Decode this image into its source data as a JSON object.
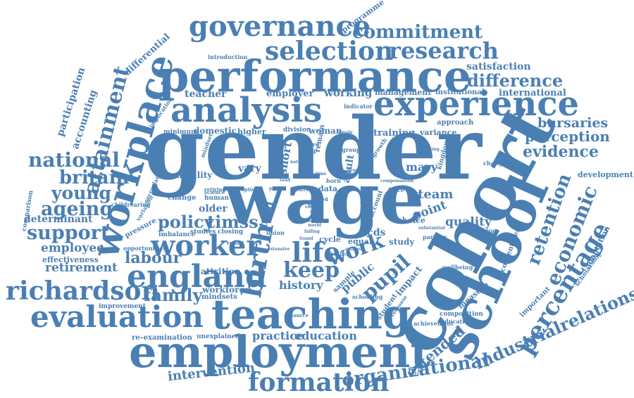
{
  "word_color": "#4a7fb3",
  "background_color": "#ffffff",
  "words": {
    "gender": "gender",
    "cohort": "cohort",
    "wage": "wage",
    "school": "school",
    "performance": "performance",
    "employment": "employment",
    "teaching": "teaching",
    "analysis": "analysis",
    "experience": "experience",
    "workplace": "workplace",
    "england": "england",
    "evaluation": "evaluation",
    "governance": "governance",
    "selection": "selection",
    "research": "research",
    "commitment": "commitment",
    "richardson": "richardson",
    "formation": "formation",
    "worker": "worker",
    "percentage": "percentage",
    "birth": "birth",
    "attainment": "attainment",
    "national": "national",
    "britain": "britain",
    "young": "young",
    "ageing": "ageing",
    "support": "support",
    "policy": "policy",
    "timss": "timss",
    "life": "life",
    "keep": "keep",
    "work": "work",
    "pupil": "pupil",
    "labour": "labour",
    "family": "family",
    "difference": "difference",
    "economic": "economic",
    "retention": "retention",
    "evidence": "evidence",
    "perception": "perception",
    "bursaries": "bursaries",
    "organizational": "organizational",
    "industrialrelations": "industrialrelations",
    "extended": "extended",
    "intervention": "intervention",
    "education": "education",
    "practice": "practice",
    "history": "history",
    "public": "public",
    "team": "team",
    "quality": "quality",
    "mary": "mary",
    "retirement": "retirement",
    "employee": "employee",
    "effectiveness": "effectiveness",
    "determinant": "determinant",
    "participation": "participation",
    "accounting": "accounting",
    "differential": "differential",
    "programme": "programme",
    "satisfaction": "satisfaction",
    "international": "international",
    "management": "management",
    "institutional": "institutional",
    "teacher": "teacher",
    "employer": "employer",
    "working": "working",
    "domestic": "domestic",
    "higher": "higher",
    "division": "division",
    "woman": "woman",
    "training": "training",
    "variance": "variance",
    "approach": "approach",
    "development": "development",
    "adaptation": "adaptation",
    "scholarship": "scholarship",
    "contentment": "contentment",
    "important": "important",
    "composition": "composition",
    "measure": "measure",
    "attrition": "attrition",
    "workforce": "workforce",
    "mindsets": "mindsets",
    "improvement": "improvement",
    "unexplained": "unexplained",
    "re_examination": "re–examination",
    "study": "study",
    "point": "point",
    "choice": "choice",
    "ncds": "ncds",
    "equal": "equal",
    "sample": "sample",
    "impact": "impact",
    "student": "student",
    "short": "short",
    "trial": "trial",
    "vary": "vary",
    "mobility": "mobility",
    "older": "older",
    "change": "change",
    "cycle": "cycle",
    "remain": "remain",
    "adult": "adult",
    "data": "data",
    "force": "force",
    "assessing": "assessing",
    "changing": "changing",
    "comparison": "comparison",
    "childrearing": "childrearing",
    "variation": "variation",
    "pressure": "pressure",
    "imbalance": "imbalance",
    "studies": "studies",
    "closing": "closing",
    "opportunities": "opportunities",
    "minimum": "minimum",
    "implication": "implication",
    "introduction": "introduction",
    "indicator": "indicator",
    "secondary": "secondary",
    "mindset": "mindset",
    "human": "human",
    "retiring": "retiring",
    "science": "science",
    "option": "option",
    "union": "union",
    "better": "better",
    "live": "live",
    "gap": "gap",
    "growth": "growth",
    "examine": "examine",
    "schooling": "schooling",
    "wellbeing": "wellbeing",
    "partner": "partner",
    "achievement": "achievement",
    "educational": "educational",
    "response": "response",
    "resource": "resource",
    "group": "group",
    "born": "born",
    "account": "account",
    "paper": "paper",
    "report": "report",
    "survey": "survey",
    "substantial": "substantial",
    "related": "related",
    "extensive": "extensive",
    "female": "female",
    "year": "year",
    "time": "time",
    "view": "view",
    "entry": "entry",
    "kingdom": "kingdom",
    "unlocking": "unlocking",
    "experienced": "experienced",
    "present": "present",
    "part": "part",
    "nature": "nature",
    "tend": "tend",
    "role": "role",
    "world": "world",
    "level": "level",
    "nurse": "nurse",
    "found": "found",
    "linked": "linked",
    "falling": "falling",
    "longer": "longer",
    "compensation": "compensation"
  }
}
